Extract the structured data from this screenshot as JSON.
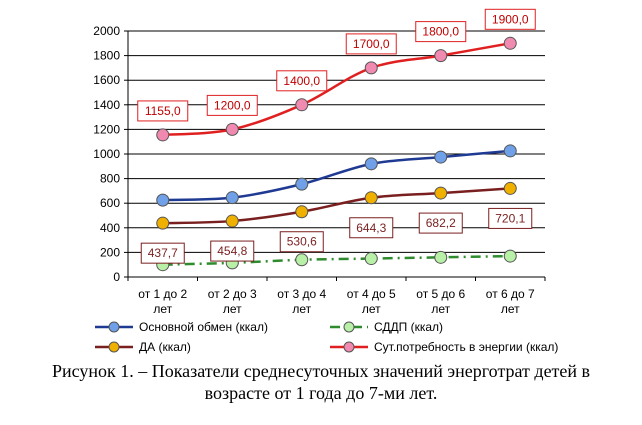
{
  "chart_data": {
    "type": "line",
    "categories": [
      [
        "от 1 до 2",
        "лет"
      ],
      [
        "от 2 до 3",
        "лет"
      ],
      [
        "от 3 до 4",
        "лет"
      ],
      [
        "от 4 до 5",
        "лет"
      ],
      [
        "от 5 до 6",
        "лет"
      ],
      [
        "от 6 до 7",
        "лет"
      ]
    ],
    "ylim": [
      0,
      2000
    ],
    "yticks": [
      0,
      200,
      400,
      600,
      800,
      1000,
      1200,
      1400,
      1600,
      1800,
      2000
    ],
    "grid": true,
    "legend_position": "bottom",
    "series": [
      {
        "name": "Основной обмен (ккал)",
        "values": [
          625,
          645,
          755,
          920,
          975,
          1025
        ],
        "line_color": "#1f3a93",
        "marker_color": "#6fa0e8",
        "dash": "solid",
        "labels": []
      },
      {
        "name": "СДДП (ккал)",
        "values": [
          100,
          115,
          140,
          150,
          160,
          170
        ],
        "line_color": "#2e8b2e",
        "marker_color": "#b8f0a8",
        "dash": "dashdot",
        "labels": []
      },
      {
        "name": "ДА (ккал)",
        "values": [
          437.7,
          454.8,
          530.6,
          644.3,
          682.2,
          720.1
        ],
        "line_color": "#7a1f1f",
        "marker_color": "#f0b000",
        "dash": "solid",
        "labels": [
          "437,7",
          "454,8",
          "530,6",
          "644,3",
          "682,2",
          "720,1"
        ],
        "label_placement": "below"
      },
      {
        "name": "Сут.потребность в энергии (ккал)",
        "values": [
          1155.0,
          1200.0,
          1400.0,
          1700.0,
          1800.0,
          1900.0
        ],
        "line_color": "#e02020",
        "marker_color": "#f08ab0",
        "dash": "solid",
        "labels": [
          "1155,0",
          "1200,0",
          "1400,0",
          "1700,0",
          "1800,0",
          "1900,0"
        ],
        "label_placement": "above"
      }
    ]
  },
  "caption": {
    "line1": "Рисунок 1. – Показатели среднесуточных значений энерготрат детей в",
    "line2": "возрасте от 1 года до 7-ми лет."
  }
}
